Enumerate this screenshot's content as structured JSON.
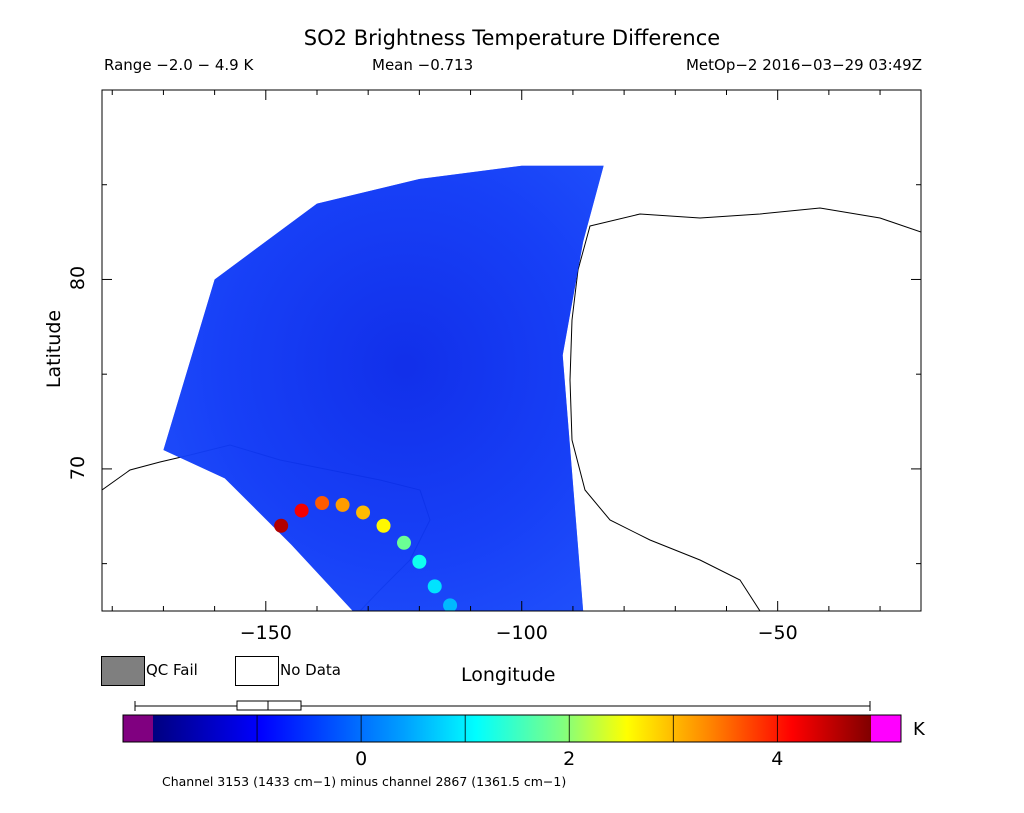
{
  "chart_data": {
    "type": "heatmap",
    "title": "SO2 Brightness Temperature Difference",
    "info": {
      "range": "Range −2.0 − 4.9 K",
      "mean": "Mean −0.713",
      "satellite": "MetOp−2 2016−03−29 03:49Z"
    },
    "xlabel": "Longitude",
    "ylabel": "Latitude",
    "xlim": [
      -182,
      -22
    ],
    "ylim": [
      62.5,
      90
    ],
    "xticks": [
      -150,
      -100,
      -50
    ],
    "xtick_labels": [
      "−150",
      "−100",
      "−50"
    ],
    "yticks": [
      70,
      80
    ],
    "ytick_labels": [
      "70",
      "80"
    ],
    "swath": {
      "lon_west": -170,
      "lon_east": -88,
      "lat_north": 86,
      "mean_value": -0.713
    },
    "plume": [
      {
        "lon": -147,
        "lat": 67.0,
        "value": 4.6
      },
      {
        "lon": -143,
        "lat": 67.8,
        "value": 4.2
      },
      {
        "lon": -139,
        "lat": 68.2,
        "value": 3.6
      },
      {
        "lon": -135,
        "lat": 68.1,
        "value": 3.2
      },
      {
        "lon": -131,
        "lat": 67.7,
        "value": 3.0
      },
      {
        "lon": -127,
        "lat": 67.0,
        "value": 2.6
      },
      {
        "lon": -123,
        "lat": 66.1,
        "value": 1.8
      },
      {
        "lon": -120,
        "lat": 65.1,
        "value": 1.2
      },
      {
        "lon": -117,
        "lat": 63.8,
        "value": 0.9
      },
      {
        "lon": -114,
        "lat": 62.8,
        "value": 0.6
      }
    ],
    "colorbar": {
      "min": -2.0,
      "max": 4.9,
      "ticks": [
        0,
        2,
        4
      ],
      "tick_labels": [
        "0",
        "2",
        "4"
      ],
      "unit": "K",
      "caption": "Channel 3153 (1433 cm−1) minus channel 2867 (1361.5 cm−1)"
    },
    "legend": {
      "qc_fail": "QC Fail",
      "no_data": "No Data"
    },
    "colors": {
      "qc_fail": "#7f7f7f",
      "no_data": "#ffffff",
      "under": "#800080",
      "over": "#ff00ff"
    }
  }
}
